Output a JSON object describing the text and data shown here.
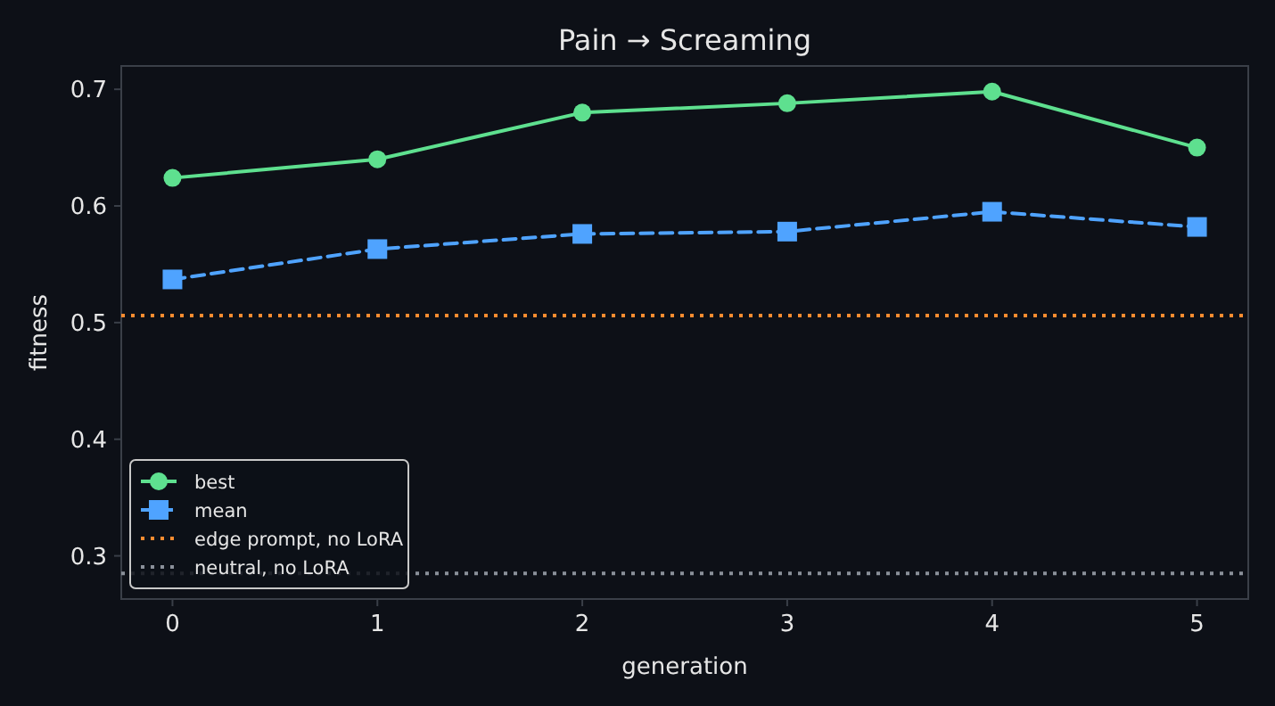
{
  "chart_data": {
    "type": "line",
    "title": "Pain → Screaming",
    "xlabel": "generation",
    "ylabel": "fitness",
    "x": [
      0,
      1,
      2,
      3,
      4,
      5
    ],
    "series": [
      {
        "name": "best",
        "color": "#5ee08f",
        "marker": "circle",
        "line_style": "solid",
        "values": [
          0.624,
          0.64,
          0.68,
          0.688,
          0.698,
          0.65
        ]
      },
      {
        "name": "mean",
        "color": "#4fa3ff",
        "marker": "square",
        "line_style": "dashed",
        "values": [
          0.537,
          0.563,
          0.576,
          0.578,
          0.595,
          0.582
        ]
      }
    ],
    "ref_lines": [
      {
        "axis": "y",
        "value": 0.506,
        "label": "edge prompt, no LoRA",
        "color": "#ff8c30",
        "line_style": "dotted"
      },
      {
        "axis": "y",
        "value": 0.285,
        "label": "neutral, no LoRA",
        "color": "#8a909a",
        "line_style": "dotted"
      }
    ],
    "xlim": [
      -0.25,
      5.25
    ],
    "xticks": [
      0,
      1,
      2,
      3,
      4,
      5
    ],
    "ylim": [
      0.263,
      0.72
    ],
    "yticks": [
      0.3,
      0.4,
      0.5,
      0.6,
      0.7
    ],
    "grid": false,
    "legend": "bottom left"
  }
}
